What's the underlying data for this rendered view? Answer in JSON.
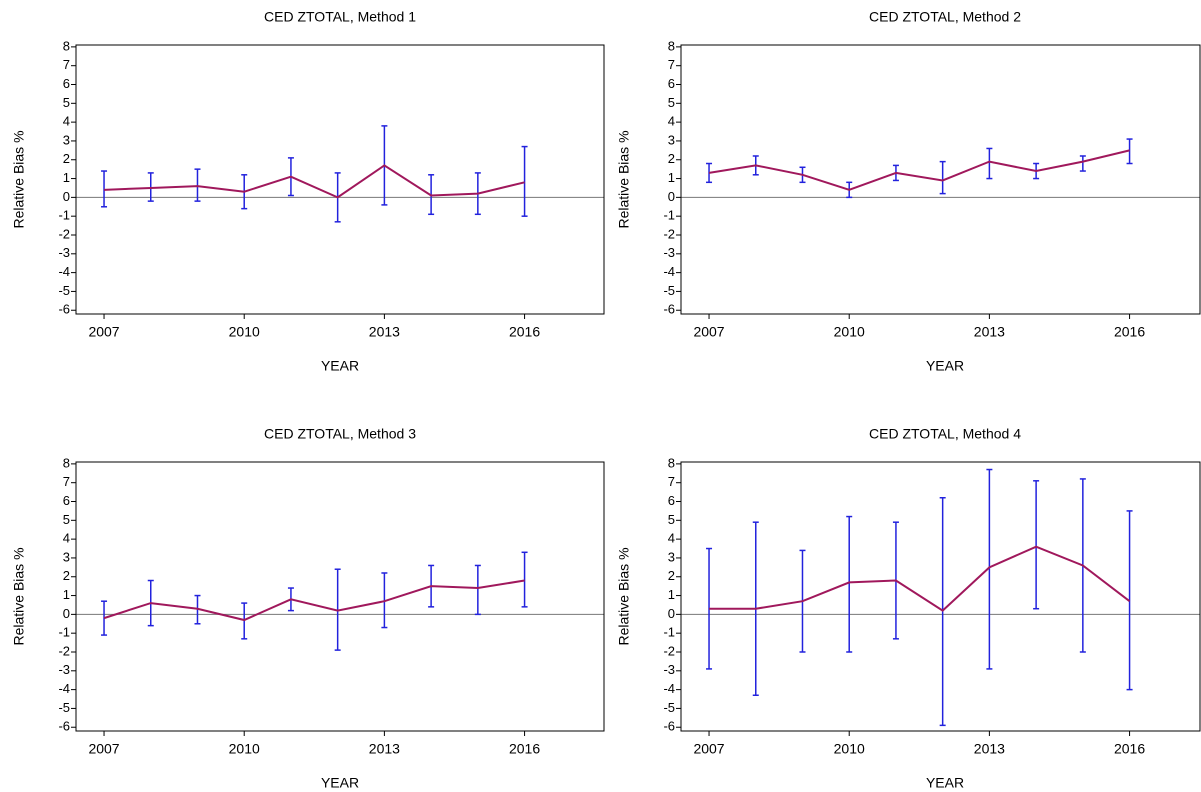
{
  "chart_data": [
    {
      "type": "line",
      "title": "CED ZTOTAL, Method 1",
      "x_label": "YEAR",
      "y_label": "Relative Bias %",
      "x": [
        2007,
        2008,
        2009,
        2010,
        2011,
        2012,
        2013,
        2014,
        2015,
        2016
      ],
      "values": [
        0.4,
        0.5,
        0.6,
        0.3,
        1.1,
        0.0,
        1.7,
        0.1,
        0.2,
        0.8
      ],
      "lower": [
        -0.5,
        -0.2,
        -0.2,
        -0.6,
        0.1,
        -1.3,
        -0.4,
        -0.9,
        -0.9,
        -1.0
      ],
      "upper": [
        1.4,
        1.3,
        1.5,
        1.2,
        2.1,
        1.3,
        3.8,
        1.2,
        1.3,
        2.7
      ],
      "color": "#a0185c",
      "error_color": "#2222dd",
      "xlim": [
        2006.4,
        2017.7
      ],
      "xticks": [
        2007,
        2010,
        2013,
        2016
      ],
      "ylim": [
        -6.2,
        8.1
      ],
      "yticks": [
        -6,
        -5,
        -4,
        -3,
        -2,
        -1,
        0,
        1,
        2,
        3,
        4,
        5,
        6,
        7,
        8
      ]
    },
    {
      "type": "line",
      "title": "CED ZTOTAL, Method 2",
      "x_label": "YEAR",
      "y_label": "Relative Bias %",
      "x": [
        2007,
        2008,
        2009,
        2010,
        2011,
        2012,
        2013,
        2014,
        2015,
        2016
      ],
      "values": [
        1.3,
        1.7,
        1.2,
        0.4,
        1.3,
        0.9,
        1.9,
        1.4,
        1.9,
        2.5
      ],
      "lower": [
        0.8,
        1.2,
        0.8,
        0.0,
        0.9,
        0.2,
        1.0,
        1.0,
        1.4,
        1.8
      ],
      "upper": [
        1.8,
        2.2,
        1.6,
        0.8,
        1.7,
        1.9,
        2.6,
        1.8,
        2.2,
        3.1
      ],
      "color": "#a0185c",
      "error_color": "#2222dd",
      "xlim": [
        2006.4,
        2017.7
      ],
      "xticks": [
        2007,
        2010,
        2013,
        2016
      ],
      "ylim": [
        -6.2,
        8.1
      ],
      "yticks": [
        -6,
        -5,
        -4,
        -3,
        -2,
        -1,
        0,
        1,
        2,
        3,
        4,
        5,
        6,
        7,
        8
      ]
    },
    {
      "type": "line",
      "title": "CED ZTOTAL, Method 3",
      "x_label": "YEAR",
      "y_label": "Relative Bias %",
      "x": [
        2007,
        2008,
        2009,
        2010,
        2011,
        2012,
        2013,
        2014,
        2015,
        2016
      ],
      "values": [
        -0.2,
        0.6,
        0.3,
        -0.3,
        0.8,
        0.2,
        0.7,
        1.5,
        1.4,
        1.8
      ],
      "lower": [
        -1.1,
        -0.6,
        -0.5,
        -1.3,
        0.2,
        -1.9,
        -0.7,
        0.4,
        0.0,
        0.4
      ],
      "upper": [
        0.7,
        1.8,
        1.0,
        0.6,
        1.4,
        2.4,
        2.2,
        2.6,
        2.6,
        3.3
      ],
      "color": "#a0185c",
      "error_color": "#2222dd",
      "xlim": [
        2006.4,
        2017.7
      ],
      "xticks": [
        2007,
        2010,
        2013,
        2016
      ],
      "ylim": [
        -6.2,
        8.1
      ],
      "yticks": [
        -6,
        -5,
        -4,
        -3,
        -2,
        -1,
        0,
        1,
        2,
        3,
        4,
        5,
        6,
        7,
        8
      ]
    },
    {
      "type": "line",
      "title": "CED ZTOTAL, Method 4",
      "x_label": "YEAR",
      "y_label": "Relative Bias %",
      "x": [
        2007,
        2008,
        2009,
        2010,
        2011,
        2012,
        2013,
        2014,
        2015,
        2016
      ],
      "values": [
        0.3,
        0.3,
        0.7,
        1.7,
        1.8,
        0.2,
        2.5,
        3.6,
        2.6,
        0.7
      ],
      "lower": [
        -2.9,
        -4.3,
        -2.0,
        -2.0,
        -1.3,
        -5.9,
        -2.9,
        0.3,
        -2.0,
        -4.0
      ],
      "upper": [
        3.5,
        4.9,
        3.4,
        5.2,
        4.9,
        6.2,
        7.7,
        7.1,
        7.2,
        5.5
      ],
      "color": "#a0185c",
      "error_color": "#2222dd",
      "xlim": [
        2006.4,
        2017.7
      ],
      "xticks": [
        2007,
        2010,
        2013,
        2016
      ],
      "ylim": [
        -6.2,
        8.1
      ],
      "yticks": [
        -6,
        -5,
        -4,
        -3,
        -2,
        -1,
        0,
        1,
        2,
        3,
        4,
        5,
        6,
        7,
        8
      ]
    }
  ]
}
